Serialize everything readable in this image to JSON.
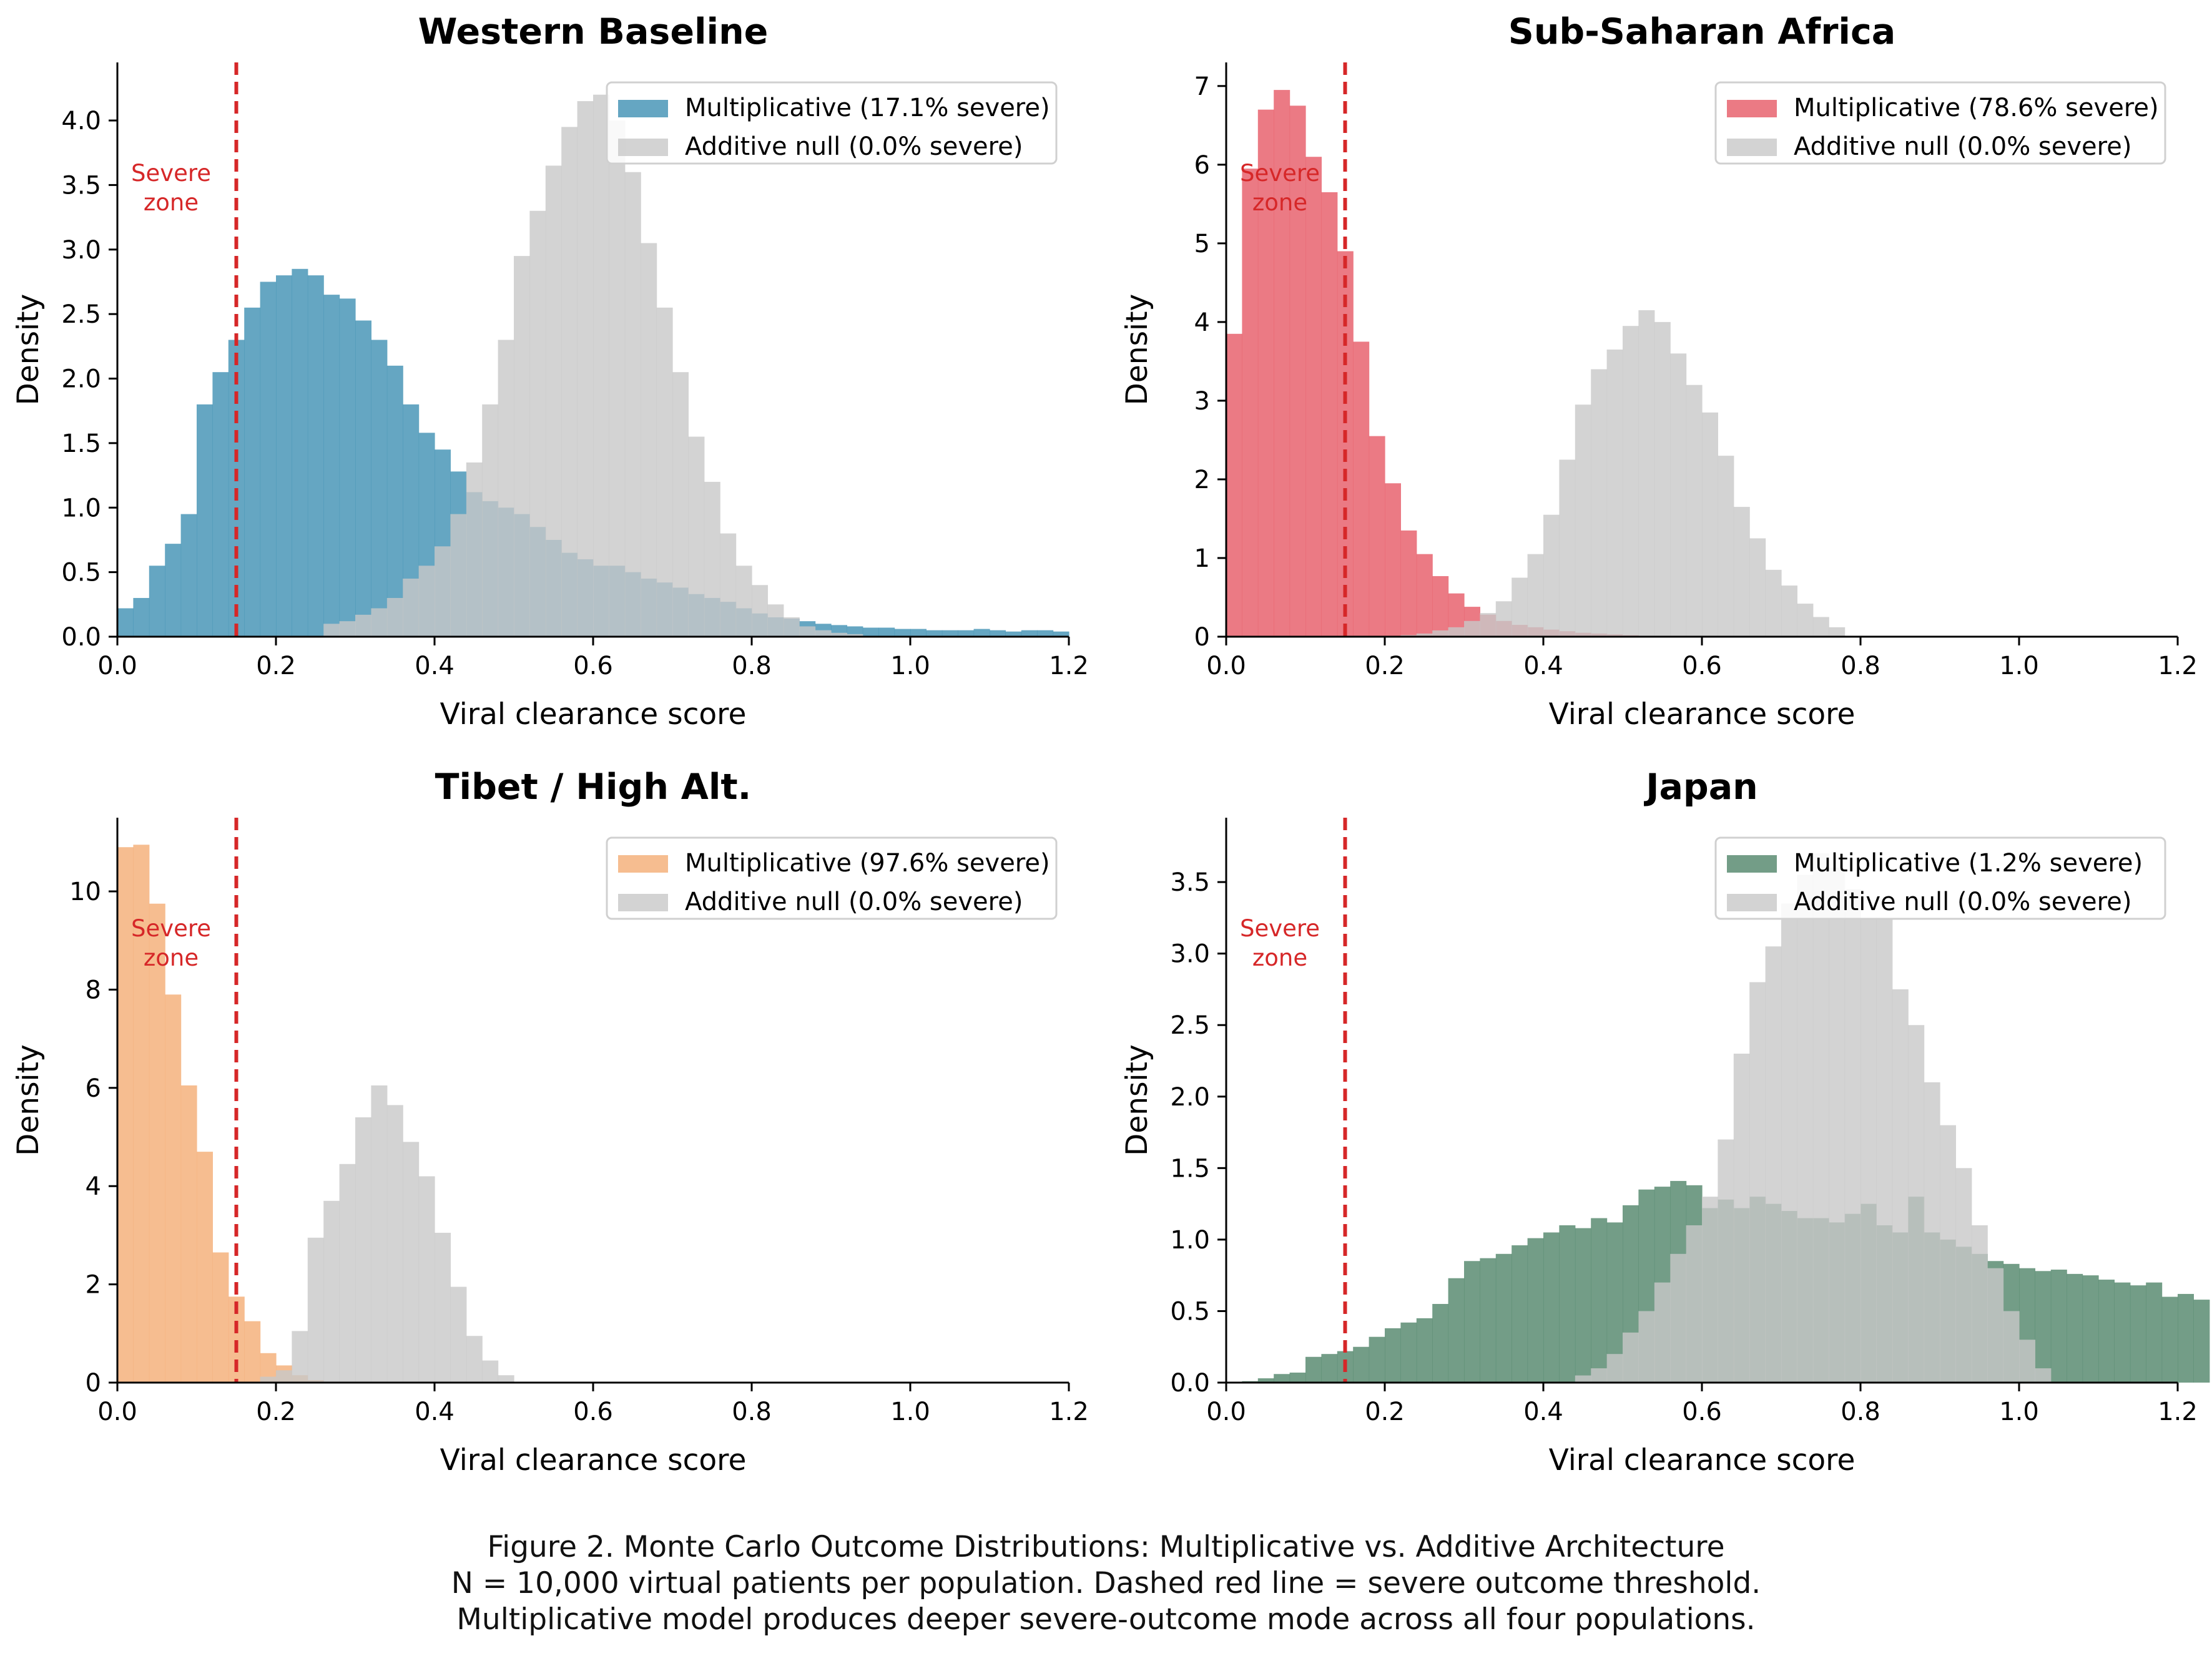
{
  "chart_data": [
    {
      "type": "histogram",
      "title": "Western Baseline",
      "xlabel": "Viral clearance score",
      "ylabel": "Density",
      "xlim": [
        0.0,
        1.2
      ],
      "ylim": [
        0,
        4.45
      ],
      "xticks": [
        "0.0",
        "0.2",
        "0.4",
        "0.6",
        "0.8",
        "1.0",
        "1.2"
      ],
      "yticks": [
        "0.0",
        "0.5",
        "1.0",
        "1.5",
        "2.0",
        "2.5",
        "3.0",
        "3.5",
        "4.0"
      ],
      "threshold": 0.15,
      "severe_label": [
        "Severe",
        "zone"
      ],
      "bin_width": 0.02,
      "series": [
        {
          "name": "Multiplicative (17.1% severe)",
          "color": "#4a97b7",
          "start": 0.0,
          "values": [
            0.22,
            0.3,
            0.55,
            0.72,
            0.95,
            1.8,
            2.05,
            2.3,
            2.55,
            2.75,
            2.8,
            2.85,
            2.8,
            2.65,
            2.62,
            2.45,
            2.3,
            2.1,
            1.8,
            1.58,
            1.45,
            1.28,
            1.12,
            1.05,
            1.0,
            0.95,
            0.85,
            0.75,
            0.65,
            0.6,
            0.55,
            0.55,
            0.5,
            0.45,
            0.42,
            0.38,
            0.33,
            0.3,
            0.27,
            0.22,
            0.18,
            0.15,
            0.14,
            0.12,
            0.1,
            0.09,
            0.08,
            0.07,
            0.07,
            0.06,
            0.06,
            0.05,
            0.05,
            0.05,
            0.06,
            0.05,
            0.04,
            0.05,
            0.05,
            0.04
          ]
        },
        {
          "name": "Additive null (0.0% severe)",
          "color": "#c8c8c8",
          "start": 0.26,
          "values": [
            0.1,
            0.12,
            0.17,
            0.22,
            0.3,
            0.45,
            0.55,
            0.7,
            0.95,
            1.35,
            1.8,
            2.3,
            2.95,
            3.3,
            3.65,
            3.95,
            4.15,
            4.2,
            4.0,
            3.6,
            3.05,
            2.55,
            2.05,
            1.55,
            1.2,
            0.8,
            0.55,
            0.4,
            0.25,
            0.15,
            0.08,
            0.05,
            0.03,
            0.02
          ]
        }
      ]
    },
    {
      "type": "histogram",
      "title": "Sub-Saharan Africa",
      "xlabel": "Viral clearance score",
      "ylabel": "Density",
      "xlim": [
        0.0,
        1.2
      ],
      "ylim": [
        0,
        7.3
      ],
      "xticks": [
        "0.0",
        "0.2",
        "0.4",
        "0.6",
        "0.8",
        "1.0",
        "1.2"
      ],
      "yticks": [
        "0",
        "1",
        "2",
        "3",
        "4",
        "5",
        "6",
        "7"
      ],
      "threshold": 0.15,
      "severe_label": [
        "Severe",
        "zone"
      ],
      "bin_width": 0.02,
      "series": [
        {
          "name": "Multiplicative (78.6% severe)",
          "color": "#e8636e",
          "start": 0.0,
          "values": [
            3.85,
            5.95,
            6.7,
            6.95,
            6.75,
            6.1,
            5.65,
            4.9,
            3.75,
            2.55,
            1.95,
            1.35,
            1.05,
            0.77,
            0.55,
            0.38,
            0.28,
            0.2,
            0.15,
            0.12,
            0.09,
            0.07,
            0.05,
            0.04,
            0.03,
            0.02
          ]
        },
        {
          "name": "Additive null (0.0% severe)",
          "color": "#c8c8c8",
          "start": 0.22,
          "values": [
            0.02,
            0.04,
            0.08,
            0.12,
            0.2,
            0.3,
            0.45,
            0.75,
            1.05,
            1.55,
            2.25,
            2.95,
            3.4,
            3.65,
            3.95,
            4.15,
            4.0,
            3.6,
            3.2,
            2.85,
            2.3,
            1.65,
            1.25,
            0.85,
            0.65,
            0.42,
            0.25,
            0.12
          ]
        }
      ]
    },
    {
      "type": "histogram",
      "title": "Tibet / High Alt.",
      "xlabel": "Viral clearance score",
      "ylabel": "Density",
      "xlim": [
        0.0,
        1.2
      ],
      "ylim": [
        0,
        11.5
      ],
      "xticks": [
        "0.0",
        "0.2",
        "0.4",
        "0.6",
        "0.8",
        "1.0",
        "1.2"
      ],
      "yticks": [
        "0",
        "2",
        "4",
        "6",
        "8",
        "10"
      ],
      "threshold": 0.15,
      "severe_label": [
        "Severe",
        "zone"
      ],
      "bin_width": 0.02,
      "series": [
        {
          "name": "Multiplicative (97.6% severe)",
          "color": "#f4b17d",
          "start": 0.0,
          "values": [
            10.9,
            10.95,
            9.75,
            7.9,
            6.05,
            4.7,
            2.65,
            1.75,
            1.25,
            0.6,
            0.35,
            0.15,
            0.05,
            0.02
          ]
        },
        {
          "name": "Additive null (0.0% severe)",
          "color": "#c8c8c8",
          "start": 0.18,
          "values": [
            0.12,
            0.25,
            1.05,
            2.95,
            3.7,
            4.45,
            5.4,
            6.05,
            5.65,
            4.9,
            4.2,
            3.05,
            1.95,
            0.95,
            0.45,
            0.15
          ]
        }
      ]
    },
    {
      "type": "histogram",
      "title": "Japan",
      "xlabel": "Viral clearance score",
      "ylabel": "Density",
      "xlim": [
        0.0,
        1.2
      ],
      "ylim": [
        0,
        3.95
      ],
      "xticks": [
        "0.0",
        "0.2",
        "0.4",
        "0.6",
        "0.8",
        "1.0",
        "1.2"
      ],
      "yticks": [
        "0.0",
        "0.5",
        "1.0",
        "1.5",
        "2.0",
        "2.5",
        "3.0",
        "3.5"
      ],
      "threshold": 0.15,
      "severe_label": [
        "Severe",
        "zone"
      ],
      "bin_width": 0.02,
      "series": [
        {
          "name": "Multiplicative (1.2% severe)",
          "color": "#5a8c72",
          "start": 0.02,
          "values": [
            0.01,
            0.03,
            0.06,
            0.07,
            0.18,
            0.2,
            0.22,
            0.25,
            0.32,
            0.38,
            0.42,
            0.45,
            0.55,
            0.73,
            0.85,
            0.87,
            0.9,
            0.96,
            1.01,
            1.05,
            1.1,
            1.08,
            1.15,
            1.12,
            1.24,
            1.35,
            1.37,
            1.41,
            1.38,
            1.22,
            1.28,
            1.22,
            1.3,
            1.25,
            1.2,
            1.15,
            1.15,
            1.12,
            1.18,
            1.25,
            1.1,
            1.05,
            1.3,
            1.05,
            1.0,
            0.95,
            0.9,
            0.85,
            0.83,
            0.8,
            0.78,
            0.79,
            0.76,
            0.75,
            0.72,
            0.7,
            0.68,
            0.7,
            0.6,
            0.62,
            0.58
          ]
        },
        {
          "name": "Additive null (0.0% severe)",
          "color": "#c8c8c8",
          "start": 0.44,
          "values": [
            0.05,
            0.1,
            0.2,
            0.35,
            0.5,
            0.7,
            0.9,
            1.1,
            1.3,
            1.7,
            2.3,
            2.8,
            3.05,
            3.35,
            3.55,
            3.7,
            3.6,
            3.45,
            3.25,
            3.25,
            2.75,
            2.5,
            2.1,
            1.8,
            1.5,
            1.1,
            0.8,
            0.5,
            0.3,
            0.1
          ]
        }
      ]
    }
  ],
  "caption": {
    "line1": "Figure 2.  Monte Carlo Outcome Distributions: Multiplicative vs. Additive Architecture",
    "line2": "N = 10,000 virtual patients per population. Dashed red line = severe outcome threshold.",
    "line3": "Multiplicative model produces deeper severe-outcome mode across all four populations."
  }
}
